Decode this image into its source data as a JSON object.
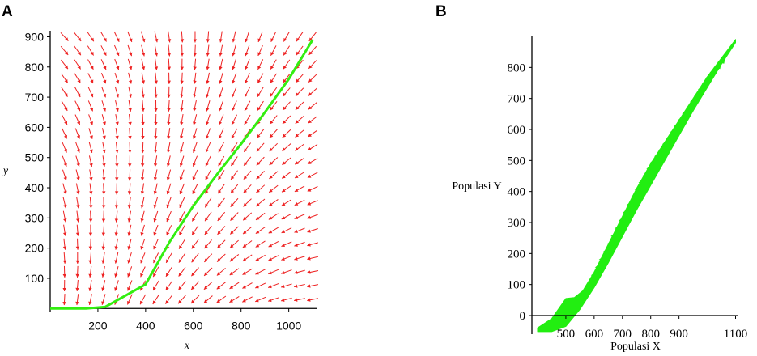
{
  "chart_data": [
    {
      "panel": "A",
      "type": "line",
      "title": "",
      "xlabel": "x",
      "ylabel": "y",
      "xlim": [
        0,
        1120
      ],
      "ylim": [
        -10,
        920
      ],
      "xticks": [
        "200",
        "400",
        "600",
        "800",
        "1000"
      ],
      "xtick_values": [
        200,
        400,
        600,
        800,
        1000
      ],
      "yticks": [
        "100",
        "200",
        "300",
        "400",
        "500",
        "600",
        "700",
        "800",
        "900"
      ],
      "ytick_values": [
        100,
        200,
        300,
        400,
        500,
        600,
        700,
        800,
        900
      ],
      "series": [
        {
          "color": "#33ee11",
          "x": [
            0,
            150,
            230,
            400,
            500,
            600,
            700,
            800,
            900,
            1000,
            1100
          ],
          "y": [
            0,
            0,
            5,
            80,
            220,
            340,
            445,
            545,
            650,
            760,
            890
          ]
        }
      ],
      "direction_field": {
        "color": "#ee2222",
        "x_range": [
          60,
          1100
        ],
        "y_range": [
          30,
          900
        ],
        "nx": 20,
        "ny": 20
      }
    },
    {
      "panel": "B",
      "type": "area",
      "title": "",
      "xlabel": "Populasi X",
      "ylabel": "Populasi Y",
      "xlim": [
        380,
        1110
      ],
      "ylim": [
        -60,
        900
      ],
      "xticks": [
        "500",
        "600",
        "700",
        "800",
        "900",
        "1100"
      ],
      "xtick_values": [
        500,
        600,
        700,
        800,
        900,
        1100
      ],
      "yticks": [
        "0",
        "100",
        "200",
        "300",
        "400",
        "500",
        "600",
        "700",
        "800"
      ],
      "ytick_values": [
        0,
        100,
        200,
        300,
        400,
        500,
        600,
        700,
        800
      ],
      "series": [
        {
          "color": "#22ee11",
          "upper": {
            "x": [
              400,
              450,
              500,
              530,
              560,
              600,
              650,
              700,
              750,
              800,
              850,
              900,
              950,
              1000,
              1050,
              1100
            ],
            "y": [
              -40,
              -10,
              55,
              58,
              80,
              140,
              230,
              320,
              410,
              490,
              560,
              630,
              700,
              770,
              830,
              890
            ]
          },
          "lower": {
            "x": [
              400,
              450,
              500,
              550,
              600,
              650,
              700,
              750,
              800,
              850,
              900,
              950,
              1000,
              1050,
              1100
            ],
            "y": [
              -52,
              -52,
              -35,
              20,
              90,
              170,
              255,
              340,
              420,
              500,
              580,
              660,
              735,
              810,
              880
            ]
          }
        }
      ]
    }
  ],
  "labels": {
    "panel_a": "A",
    "panel_b": "B"
  }
}
